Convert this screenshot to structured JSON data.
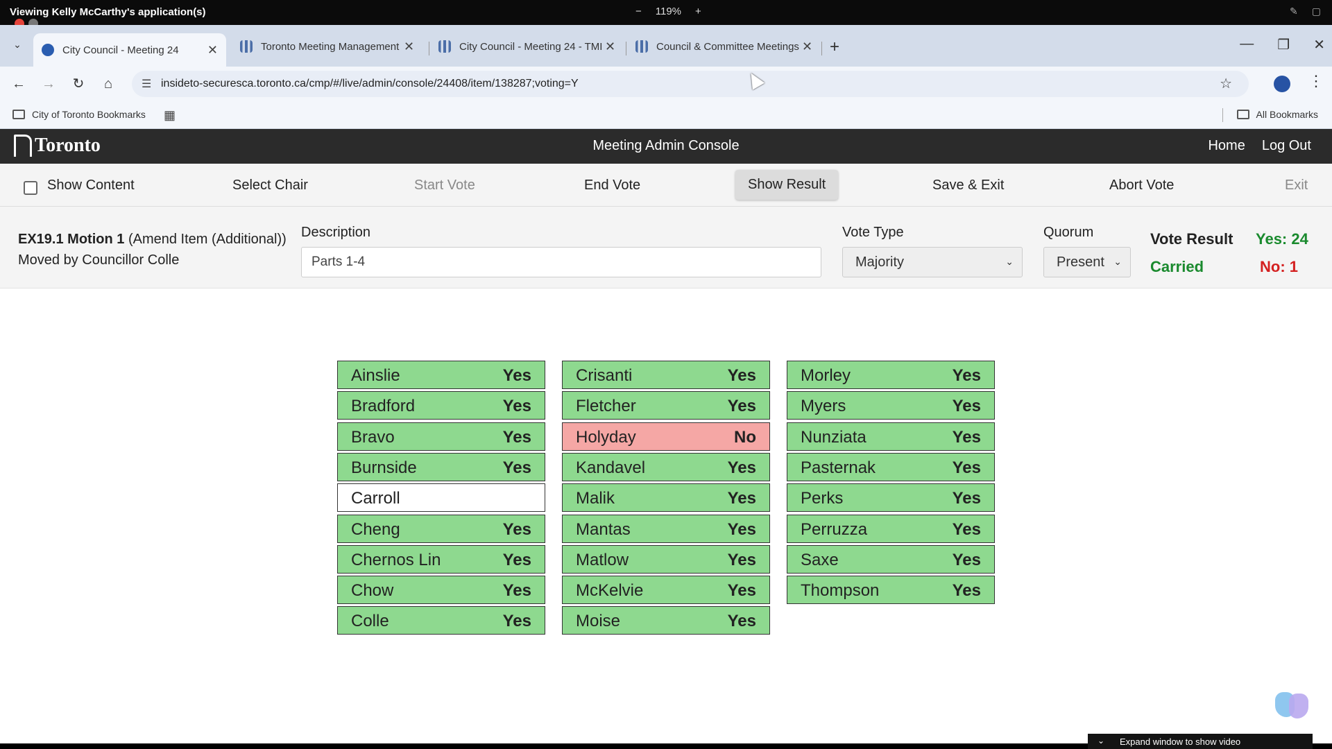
{
  "share": {
    "title": "Viewing Kelly McCarthy's application(s)",
    "zoom_minus": "−",
    "zoom": "119%",
    "zoom_plus": "+"
  },
  "browser": {
    "tabs": [
      {
        "label": "City Council - Meeting 24"
      },
      {
        "label": "Toronto Meeting Management"
      },
      {
        "label": "City Council - Meeting 24 - TMI"
      },
      {
        "label": "Council & Committee Meetings"
      }
    ],
    "url": "insideto-securesca.toronto.ca/cmp/#/live/admin/console/24408/item/138287;voting=Y",
    "bookmark": "City of Toronto Bookmarks",
    "all_bookmarks": "All Bookmarks"
  },
  "header": {
    "logo": "Toronto",
    "title": "Meeting Admin Console",
    "home": "Home",
    "logout": "Log Out"
  },
  "actions": {
    "show_content": "Show Content",
    "select_chair": "Select Chair",
    "start_vote": "Start Vote",
    "end_vote": "End Vote",
    "show_result": "Show Result",
    "save_exit": "Save & Exit",
    "abort_vote": "Abort Vote",
    "exit": "Exit"
  },
  "motion": {
    "id": "EX19.1 Motion 1",
    "type": "(Amend Item (Additional))",
    "moved_by": "Moved by Councillor Colle",
    "description_label": "Description",
    "description_value": "Parts 1-4",
    "vote_type_label": "Vote Type",
    "vote_type_value": "Majority",
    "quorum_label": "Quorum",
    "quorum_value": "Present",
    "result_label": "Vote Result",
    "result_status": "Carried",
    "yes_count": "Yes: 24",
    "no_count": "No: 1"
  },
  "colors": {
    "yes": "#8ed98f",
    "no": "#f5a7a5",
    "carried": "#1a8a2e",
    "no_text": "#d42020"
  },
  "votes": [
    [
      {
        "name": "Ainslie",
        "vote": "Yes"
      },
      {
        "name": "Bradford",
        "vote": "Yes"
      },
      {
        "name": "Bravo",
        "vote": "Yes"
      },
      {
        "name": "Burnside",
        "vote": "Yes"
      },
      {
        "name": "Carroll",
        "vote": ""
      },
      {
        "name": "Cheng",
        "vote": "Yes"
      },
      {
        "name": "Chernos Lin",
        "vote": "Yes"
      },
      {
        "name": "Chow",
        "vote": "Yes"
      },
      {
        "name": "Colle",
        "vote": "Yes"
      }
    ],
    [
      {
        "name": "Crisanti",
        "vote": "Yes"
      },
      {
        "name": "Fletcher",
        "vote": "Yes"
      },
      {
        "name": "Holyday",
        "vote": "No"
      },
      {
        "name": "Kandavel",
        "vote": "Yes"
      },
      {
        "name": "Malik",
        "vote": "Yes"
      },
      {
        "name": "Mantas",
        "vote": "Yes"
      },
      {
        "name": "Matlow",
        "vote": "Yes"
      },
      {
        "name": "McKelvie",
        "vote": "Yes"
      },
      {
        "name": "Moise",
        "vote": "Yes"
      }
    ],
    [
      {
        "name": "Morley",
        "vote": "Yes"
      },
      {
        "name": "Myers",
        "vote": "Yes"
      },
      {
        "name": "Nunziata",
        "vote": "Yes"
      },
      {
        "name": "Pasternak",
        "vote": "Yes"
      },
      {
        "name": "Perks",
        "vote": "Yes"
      },
      {
        "name": "Perruzza",
        "vote": "Yes"
      },
      {
        "name": "Saxe",
        "vote": "Yes"
      },
      {
        "name": "Thompson",
        "vote": "Yes"
      }
    ]
  ],
  "expand_video": "Expand window to show video"
}
